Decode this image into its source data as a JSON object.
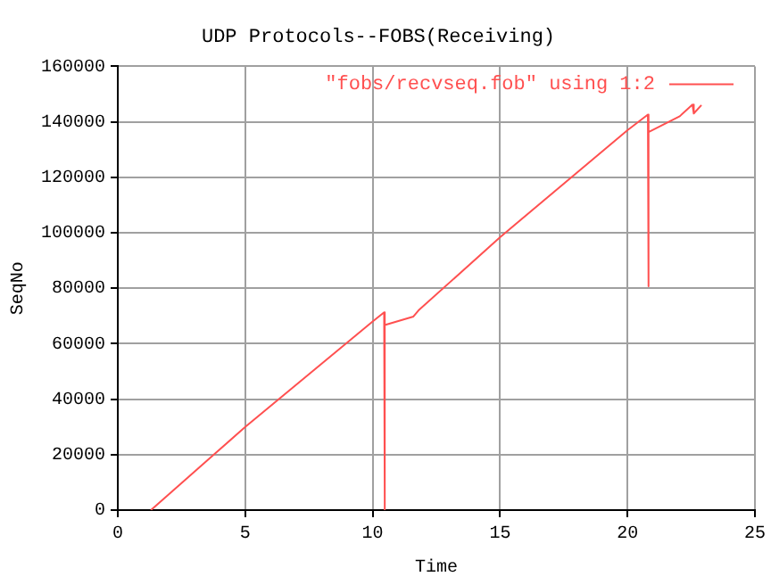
{
  "chart_data": {
    "type": "line",
    "title": "UDP Protocols--FOBS(Receiving)",
    "xlabel": "Time",
    "ylabel": "SeqNo",
    "series": [
      {
        "name": "\"fobs/recvseq.fob\" using 1:2",
        "color": "#ff5050",
        "x": [
          1.3,
          5,
          10,
          10.45,
          10.45,
          10.5,
          11.6,
          11.8,
          15,
          20,
          20.8,
          20.8,
          20.85,
          22.05,
          22.55,
          22.6,
          22.9
        ],
        "values": [
          0,
          30000,
          68000,
          71300,
          0,
          66700,
          69800,
          72000,
          98400,
          137000,
          142600,
          80700,
          136300,
          142000,
          146200,
          143000,
          146000
        ]
      }
    ],
    "xlim": [
      0,
      25
    ],
    "xticks": [
      0,
      5,
      10,
      15,
      20,
      25
    ],
    "ylim": [
      0,
      160000
    ],
    "yticks": [
      0,
      20000,
      40000,
      60000,
      80000,
      100000,
      120000,
      140000,
      160000
    ],
    "grid": true,
    "legend": "top right",
    "marker": "none",
    "line_style": "solid"
  }
}
